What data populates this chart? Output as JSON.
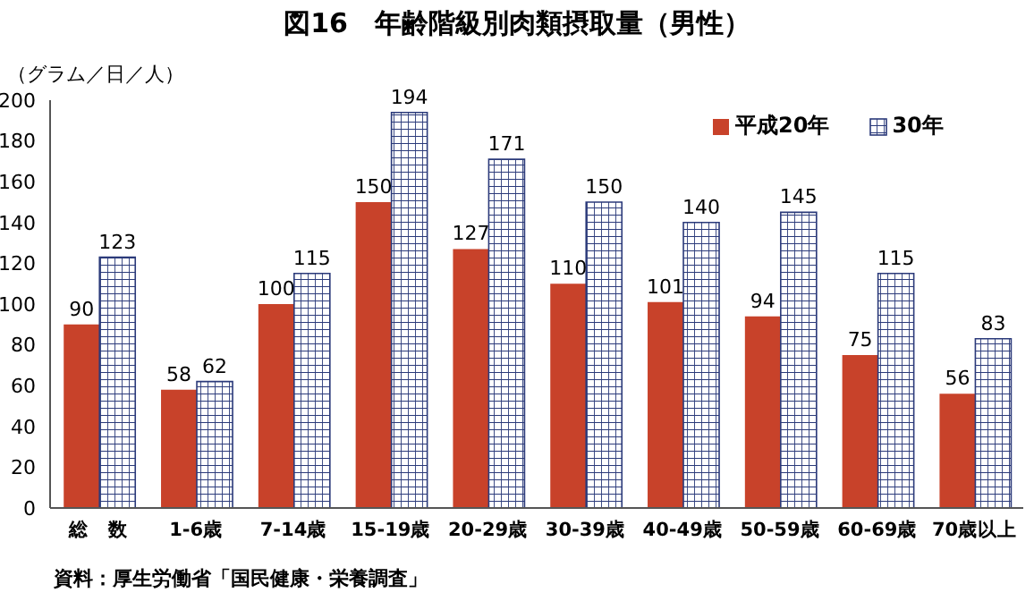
{
  "chart_data": {
    "type": "bar",
    "title": "図16　年齢階級別肉類摂取量（男性）",
    "ylabel": "（グラム／日／人）",
    "categories": [
      "総　数",
      "1-6歳",
      "7-14歳",
      "15-19歳",
      "20-29歳",
      "30-39歳",
      "40-49歳",
      "50-59歳",
      "60-69歳",
      "70歳以上"
    ],
    "series": [
      {
        "name": "平成20年",
        "color": "#c8422a",
        "values": [
          90,
          58,
          100,
          150,
          127,
          110,
          101,
          94,
          75,
          56
        ]
      },
      {
        "name": "30年",
        "color": "#2b3a7a",
        "values": [
          123,
          62,
          115,
          194,
          171,
          150,
          140,
          145,
          115,
          83
        ]
      }
    ],
    "ylim": [
      0,
      200
    ],
    "yticks": [
      0,
      20,
      40,
      60,
      80,
      100,
      120,
      140,
      160,
      180,
      200
    ],
    "data_labels": true,
    "legend": "top right",
    "grid": false,
    "annotations": [
      "資料：厚生労働省「国民健康・栄養調査」"
    ]
  }
}
